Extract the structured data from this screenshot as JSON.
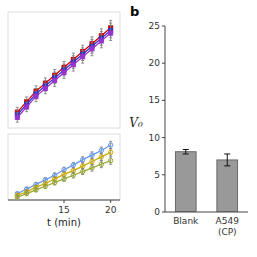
{
  "chart_data": [
    {
      "type": "line",
      "marker": "square",
      "tick_labels": false,
      "x": [
        10,
        11,
        12,
        13,
        14,
        15,
        16,
        17,
        18,
        19,
        20
      ],
      "xlim": [
        9.0,
        21.0
      ],
      "ylim": [
        4,
        26
      ],
      "series": [
        {
          "color": "#cc0000",
          "values": [
            7.0,
            9.0,
            11.0,
            12.5,
            14.0,
            15.5,
            17.0,
            18.5,
            20.0,
            21.5,
            23.0
          ],
          "errors": [
            0.9,
            0.9,
            1.0,
            1.0,
            1.1,
            1.1,
            1.2,
            1.2,
            1.3,
            1.3,
            1.4
          ]
        },
        {
          "color": "#3333cc",
          "values": [
            6.5,
            8.5,
            10.5,
            12.0,
            13.5,
            15.0,
            16.5,
            18.0,
            19.5,
            21.0,
            22.5
          ],
          "errors": [
            0.9,
            0.9,
            1.0,
            1.0,
            1.1,
            1.1,
            1.2,
            1.2,
            1.3,
            1.3,
            1.4
          ]
        },
        {
          "color": "#9933cc",
          "values": [
            6.0,
            8.0,
            10.0,
            11.5,
            13.0,
            14.5,
            16.0,
            17.5,
            19.0,
            20.5,
            22.0
          ],
          "errors": [
            0.9,
            0.9,
            1.0,
            1.0,
            1.1,
            1.1,
            1.2,
            1.2,
            1.3,
            1.3,
            1.4
          ]
        }
      ]
    },
    {
      "type": "line",
      "marker": "circle",
      "tick_labels": "x",
      "x": [
        10,
        11,
        12,
        13,
        14,
        15,
        16,
        17,
        18,
        19,
        20
      ],
      "xlim": [
        9.0,
        21.0
      ],
      "ylim": [
        0.3,
        7.5
      ],
      "xticks": [
        15,
        20
      ],
      "xlabel": "t (min)",
      "series": [
        {
          "color": "#6699ee",
          "values": [
            1.0,
            1.5,
            2.0,
            2.5,
            3.0,
            3.6,
            4.1,
            4.7,
            5.2,
            5.7,
            6.3
          ],
          "errors": [
            0.15,
            0.18,
            0.2,
            0.22,
            0.25,
            0.28,
            0.3,
            0.32,
            0.35,
            0.37,
            0.4
          ]
        },
        {
          "color": "#ccaa00",
          "values": [
            0.8,
            1.2,
            1.7,
            2.1,
            2.6,
            3.1,
            3.5,
            4.0,
            4.5,
            5.0,
            5.5
          ],
          "errors": [
            0.15,
            0.18,
            0.2,
            0.22,
            0.25,
            0.28,
            0.3,
            0.32,
            0.35,
            0.37,
            0.4
          ]
        },
        {
          "color": "#99aa33",
          "values": [
            0.6,
            1.0,
            1.4,
            1.8,
            2.2,
            2.6,
            3.0,
            3.4,
            3.8,
            4.2,
            4.6
          ],
          "errors": [
            0.15,
            0.18,
            0.2,
            0.22,
            0.25,
            0.28,
            0.3,
            0.32,
            0.35,
            0.37,
            0.4
          ]
        }
      ]
    },
    {
      "type": "bar",
      "title": "b",
      "categories": [
        "Blank",
        "A549\n(CP)"
      ],
      "values": [
        8.1,
        7.0
      ],
      "errors": [
        0.3,
        0.8
      ],
      "color": "#999999",
      "ylim": [
        0,
        25
      ],
      "yticks": [
        0,
        5,
        10,
        15,
        20,
        25
      ],
      "ylabel": "V₀"
    }
  ]
}
